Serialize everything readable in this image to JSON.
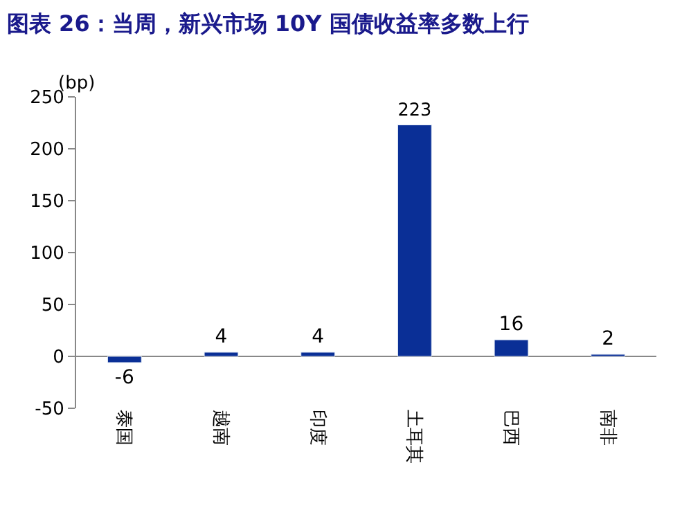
{
  "chart_data": {
    "type": "bar",
    "title": "图表 26：当周，新兴市场 10Y 国债收益率多数上行",
    "ylabel": "(bp)",
    "categories": [
      "泰国",
      "越南",
      "印度",
      "土耳其",
      "巴西",
      "南非"
    ],
    "values": [
      -6,
      4,
      4,
      223,
      16,
      2
    ],
    "color": "#0a2f96",
    "ylim": [
      -50,
      250
    ],
    "yticks": [
      -50,
      0,
      50,
      100,
      150,
      200,
      250
    ],
    "data_labels": true,
    "legend": false
  }
}
